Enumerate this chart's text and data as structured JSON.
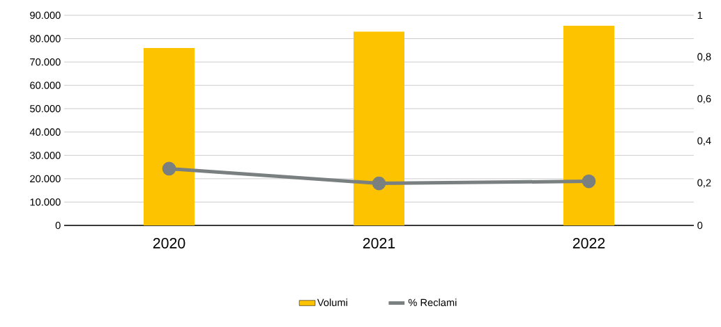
{
  "chart_data": {
    "type": "bar",
    "categories": [
      "2020",
      "2021",
      "2022"
    ],
    "series": [
      {
        "name": "Volumi",
        "color": "#fdc300",
        "values": [
          76000,
          83000,
          85500
        ]
      },
      {
        "name": "% Reclami",
        "type": "line",
        "axis": "y2",
        "color": "#7a7f80",
        "values": [
          0.27,
          0.2,
          0.21
        ]
      }
    ],
    "ylim": [
      0,
      90000
    ],
    "yticks": [
      {
        "value": 0,
        "label": "0"
      },
      {
        "value": 10000,
        "label": "10.000"
      },
      {
        "value": 20000,
        "label": "20.000"
      },
      {
        "value": 30000,
        "label": "30.000"
      },
      {
        "value": 40000,
        "label": "40.000"
      },
      {
        "value": 50000,
        "label": "50.000"
      },
      {
        "value": 60000,
        "label": "60.000"
      },
      {
        "value": 70000,
        "label": "70.000"
      },
      {
        "value": 80000,
        "label": "80.000"
      },
      {
        "value": 90000,
        "label": "90.000"
      }
    ],
    "y2lim": [
      0,
      1
    ],
    "y2ticks": [
      0,
      {
        "value": 0.2,
        "label": "0,2"
      },
      {
        "value": 0.4,
        "label": "0,4"
      },
      {
        "value": 0.6,
        "label": "0,6"
      },
      {
        "value": 0.8,
        "label": "0,8"
      },
      1
    ],
    "grid": "y",
    "legend": "bottom",
    "marker": "circle",
    "line_style": "solid"
  }
}
